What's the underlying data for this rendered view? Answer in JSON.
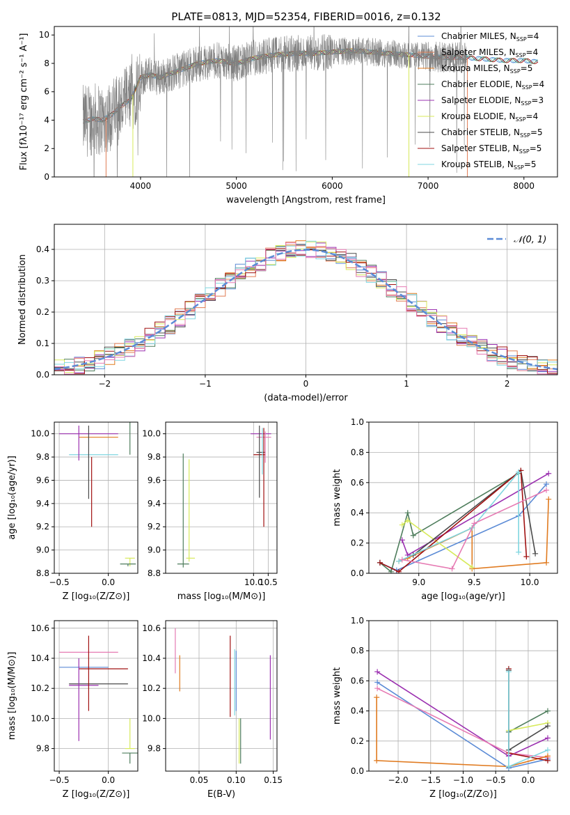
{
  "figure_title": "PLATE=0813, MJD=52354, FIBERID=0016, z=0.132",
  "colors": {
    "chabrier_miles": "#5b8bd6",
    "salpeter_miles": "#e07b52",
    "kroupa_miles": "#e07a1f",
    "chabrier_elodie": "#4e7d5c",
    "salpeter_elodie": "#9b30b0",
    "kroupa_elodie": "#d7ea5a",
    "chabrier_stelib": "#4a4a4a",
    "salpeter_stelib": "#a01010",
    "kroupa_stelib": "#7fd6e0",
    "normal_curve": "#5b8bd6",
    "data_spectrum": "#808080",
    "extra_pink": "#e67ab3"
  },
  "chart_data": [
    {
      "id": "spectrum",
      "type": "line",
      "xlabel": "wavelength [Angstrom, rest frame]",
      "ylabel": "Flux [fλ10⁻¹⁷ erg cm⁻² s⁻¹ A⁻¹]",
      "xlim": [
        3100,
        8350
      ],
      "ylim": [
        0,
        10.6
      ],
      "xticks": [
        "4000",
        "5000",
        "6000",
        "7000",
        "8000"
      ],
      "yticks": [
        "0",
        "2",
        "4",
        "6",
        "8",
        "10"
      ],
      "legend_position": "top-right",
      "legend": [
        {
          "label": "Chabrier MILES, N",
          "sub": "SSP",
          "suffix": "=4",
          "color_key": "chabrier_miles"
        },
        {
          "label": "Salpeter MILES, N",
          "sub": "SSP",
          "suffix": "=4",
          "color_key": "salpeter_miles"
        },
        {
          "label": "Kroupa MILES, N",
          "sub": "SSP",
          "suffix": "=5",
          "color_key": "kroupa_miles"
        },
        {
          "label": "Chabrier ELODIE, N",
          "sub": "SSP",
          "suffix": "=4",
          "color_key": "chabrier_elodie"
        },
        {
          "label": "Salpeter ELODIE, N",
          "sub": "SSP",
          "suffix": "=3",
          "color_key": "salpeter_elodie"
        },
        {
          "label": "Kroupa ELODIE, N",
          "sub": "SSP",
          "suffix": "=4",
          "color_key": "kroupa_elodie"
        },
        {
          "label": "Chabrier STELIB, N",
          "sub": "SSP",
          "suffix": "=5",
          "color_key": "chabrier_stelib"
        },
        {
          "label": "Salpeter STELIB, N",
          "sub": "SSP",
          "suffix": "=5",
          "color_key": "salpeter_stelib"
        },
        {
          "label": "Kroupa STELIB, N",
          "sub": "SSP",
          "suffix": "=5",
          "color_key": "kroupa_stelib"
        }
      ],
      "model_continuum": {
        "x": [
          3400,
          3500,
          3600,
          3700,
          3800,
          3900,
          4000,
          4100,
          4200,
          4400,
          4600,
          4800,
          5000,
          5200,
          5400,
          5600,
          5800,
          6000,
          6200,
          6400,
          6600,
          6800,
          7000,
          7200,
          7400,
          7600,
          7800,
          8000,
          8150
        ],
        "y": [
          3.9,
          4.1,
          4.0,
          4.4,
          5.0,
          5.5,
          7.0,
          7.2,
          7.0,
          7.5,
          8.0,
          8.2,
          8.0,
          8.4,
          8.6,
          8.7,
          8.7,
          8.8,
          8.9,
          8.8,
          8.7,
          8.6,
          8.5,
          8.4,
          8.4,
          8.3,
          8.2,
          8.2,
          8.1
        ]
      }
    },
    {
      "id": "residuals",
      "type": "line",
      "xlabel": "(data-model)/error",
      "ylabel": "Normed distribution",
      "xlim": [
        -2.5,
        2.5
      ],
      "ylim": [
        0,
        0.48
      ],
      "xticks": [
        "−2",
        "−1",
        "0",
        "1",
        "2"
      ],
      "yticks": [
        "0.0",
        "0.1",
        "0.2",
        "0.3",
        "0.4"
      ],
      "grid": true,
      "legend_position": "top-right",
      "legend": [
        {
          "label": "𝒩(0, 1)",
          "color_key": "normal_curve"
        }
      ],
      "bin_width": 0.1,
      "bin_start": -2.5
    },
    {
      "id": "age_vs_Z",
      "type": "scatter",
      "xlabel": "Z [log₁₀(Z/Z⊙)]",
      "ylabel": "age  [log₁₀(age/yr)]",
      "xlim": [
        -0.55,
        0.3
      ],
      "ylim": [
        8.8,
        10.1
      ],
      "xticks": [
        "−0.5",
        "0.0"
      ],
      "yticks": [
        "8.8",
        "9.0",
        "9.2",
        "9.4",
        "9.6",
        "9.8",
        "10.0"
      ],
      "grid": true,
      "points": [
        {
          "x": 0.22,
          "y": 9.82,
          "xerr": 0.0,
          "yerr": [
            0.0,
            0.95
          ],
          "color_key": "chabrier_elodie"
        },
        {
          "x": 0.22,
          "y": 8.93,
          "xerr": 0.05,
          "yerr": [
            0.07,
            0.0
          ],
          "color_key": "kroupa_elodie"
        },
        {
          "x": 0.2,
          "y": 8.88,
          "xerr": 0.08,
          "yerr": [
            0.02,
            0.0
          ],
          "color_key": "chabrier_elodie"
        },
        {
          "x": -0.15,
          "y": 9.82,
          "xerr": 0.25,
          "yerr": [
            0.0,
            0.0
          ],
          "color_key": "kroupa_stelib"
        },
        {
          "x": -0.2,
          "y": 10.0,
          "xerr": 0.3,
          "yerr": [
            0.0,
            0.0
          ],
          "color_key": "salpeter_elodie"
        },
        {
          "x": -0.1,
          "y": 9.97,
          "xerr": 0.2,
          "yerr": [
            0.0,
            0.0
          ],
          "color_key": "kroupa_miles"
        },
        {
          "x": -0.17,
          "y": 9.8,
          "xerr": 0.0,
          "yerr": [
            0.6,
            0.0
          ],
          "color_key": "salpeter_stelib"
        },
        {
          "x": -0.2,
          "y": 9.84,
          "xerr": 0.0,
          "yerr": [
            0.4,
            0.23
          ],
          "color_key": "chabrier_stelib"
        },
        {
          "x": -0.3,
          "y": 9.97,
          "xerr": 0.0,
          "yerr": [
            0.2,
            0.1
          ],
          "color_key": "salpeter_elodie"
        }
      ]
    },
    {
      "id": "age_vs_mass",
      "type": "scatter",
      "xlabel": "mass [log₁₀(M/M⊙)]",
      "ylabel": "",
      "xlim": [
        7.0,
        10.8
      ],
      "ylim": [
        8.8,
        10.1
      ],
      "xticks": [
        "10.0",
        "10.5"
      ],
      "yticks": [
        "8.8",
        "9.0",
        "9.2",
        "9.4",
        "9.6",
        "9.8",
        "10.0"
      ],
      "grid": true
    },
    {
      "id": "mass_weight_vs_age",
      "type": "line",
      "xlabel": "age  [log₁₀(age/yr)]",
      "ylabel": "mass weight",
      "xlim": [
        8.55,
        10.25
      ],
      "ylim": [
        0,
        1.0
      ],
      "xticks": [
        "9.0",
        "9.5",
        "10.0"
      ],
      "yticks": [
        "0.0",
        "0.2",
        "0.4",
        "0.6",
        "0.8",
        "1.0"
      ],
      "grid": true,
      "series": [
        {
          "color_key": "chabrier_miles",
          "x": [
            8.65,
            8.8,
            9.9,
            10.15
          ],
          "y": [
            0.07,
            0.02,
            0.38,
            0.59
          ]
        },
        {
          "color_key": "kroupa_miles",
          "x": [
            8.82,
            8.9,
            9.48,
            9.48,
            10.15,
            10.17
          ],
          "y": [
            0.08,
            0.1,
            0.3,
            0.03,
            0.07,
            0.49
          ]
        },
        {
          "color_key": "chabrier_elodie",
          "x": [
            8.65,
            8.75,
            8.9,
            8.95,
            9.9
          ],
          "y": [
            0.07,
            0.01,
            0.4,
            0.25,
            0.66
          ]
        },
        {
          "color_key": "salpeter_elodie",
          "x": [
            8.85,
            8.9,
            10.17
          ],
          "y": [
            0.22,
            0.12,
            0.66
          ]
        },
        {
          "color_key": "kroupa_elodie",
          "x": [
            8.85,
            8.9,
            9.48
          ],
          "y": [
            0.32,
            0.35,
            0.04
          ]
        },
        {
          "color_key": "chabrier_stelib",
          "x": [
            8.95,
            9.92,
            10.05
          ],
          "y": [
            0.12,
            0.68,
            0.13
          ]
        },
        {
          "color_key": "salpeter_stelib",
          "x": [
            8.65,
            8.82,
            9.92,
            9.97
          ],
          "y": [
            0.07,
            0.01,
            0.68,
            0.11
          ]
        },
        {
          "color_key": "kroupa_stelib",
          "x": [
            8.82,
            9.48,
            9.9,
            9.9
          ],
          "y": [
            0.08,
            0.3,
            0.67,
            0.14
          ]
        },
        {
          "color_key": "extra_pink",
          "x": [
            8.85,
            9.3,
            9.5,
            10.15
          ],
          "y": [
            0.09,
            0.03,
            0.33,
            0.55
          ]
        }
      ]
    },
    {
      "id": "mass_vs_Z",
      "type": "scatter",
      "xlabel": "Z [log₁₀(Z/Z⊙)]",
      "ylabel": "mass [log₁₀(M/M⊙)]",
      "xlim": [
        -0.55,
        0.3
      ],
      "ylim": [
        9.65,
        10.65
      ],
      "xticks": [
        "−0.5",
        "0.0"
      ],
      "yticks": [
        "9.8",
        "10.0",
        "10.2",
        "10.4",
        "10.6"
      ],
      "grid": true,
      "points": [
        {
          "x": -0.25,
          "y": 10.34,
          "xerr": 0.25,
          "yerr": [
            0.0,
            0.0
          ],
          "color_key": "chabrier_miles"
        },
        {
          "x": -0.05,
          "y": 10.33,
          "xerr": 0.25,
          "yerr": [
            0.0,
            0.0
          ],
          "color_key": "salpeter_stelib"
        },
        {
          "x": -0.1,
          "y": 10.23,
          "xerr": 0.3,
          "yerr": [
            0.0,
            0.0
          ],
          "color_key": "chabrier_stelib"
        },
        {
          "x": -0.25,
          "y": 10.22,
          "xerr": 0.15,
          "yerr": [
            0.0,
            0.0
          ],
          "color_key": "salpeter_elodie"
        },
        {
          "x": -0.2,
          "y": 10.44,
          "xerr": 0.3,
          "yerr": [
            0.0,
            0.0
          ],
          "color_key": "extra_pink"
        },
        {
          "x": 0.22,
          "y": 9.8,
          "xerr": 0.05,
          "yerr": [
            0.0,
            0.2
          ],
          "color_key": "kroupa_elodie"
        },
        {
          "x": 0.22,
          "y": 9.77,
          "xerr": 0.08,
          "yerr": [
            0.07,
            0.0
          ],
          "color_key": "chabrier_elodie"
        },
        {
          "x": -0.3,
          "y": 10.15,
          "xerr": 0.0,
          "yerr": [
            0.3,
            0.25
          ],
          "color_key": "salpeter_elodie"
        },
        {
          "x": -0.2,
          "y": 10.3,
          "xerr": 0.0,
          "yerr": [
            0.25,
            0.25
          ],
          "color_key": "salpeter_stelib"
        }
      ]
    },
    {
      "id": "mass_vs_EBV",
      "type": "scatter",
      "xlabel": "E(B-V)",
      "ylabel": "",
      "xlim": [
        0.005,
        0.155
      ],
      "ylim": [
        9.65,
        10.65
      ],
      "xticks": [
        "0.05",
        "0.10",
        "0.15"
      ],
      "yticks": [
        "9.8",
        "10.0",
        "10.2",
        "10.4",
        "10.6"
      ],
      "grid": true,
      "points": [
        {
          "x": 0.018,
          "y": 10.45,
          "yerr": [
            0.15,
            0.15
          ],
          "color_key": "extra_pink"
        },
        {
          "x": 0.024,
          "y": 10.3,
          "yerr": [
            0.12,
            0.12
          ],
          "color_key": "kroupa_miles"
        },
        {
          "x": 0.092,
          "y": 10.28,
          "yerr": [
            0.27,
            0.27
          ],
          "color_key": "salpeter_stelib"
        },
        {
          "x": 0.098,
          "y": 10.24,
          "yerr": [
            0.22,
            0.22
          ],
          "color_key": "kroupa_stelib"
        },
        {
          "x": 0.1,
          "y": 10.25,
          "yerr": [
            0.2,
            0.2
          ],
          "color_key": "chabrier_miles"
        },
        {
          "x": 0.104,
          "y": 9.85,
          "yerr": [
            0.15,
            0.15
          ],
          "color_key": "kroupa_elodie"
        },
        {
          "x": 0.106,
          "y": 9.85,
          "yerr": [
            0.15,
            0.15
          ],
          "color_key": "chabrier_elodie"
        },
        {
          "x": 0.146,
          "y": 10.14,
          "yerr": [
            0.28,
            0.28
          ],
          "color_key": "salpeter_elodie"
        }
      ]
    },
    {
      "id": "mass_weight_vs_Z",
      "type": "line",
      "xlabel": "Z [log₁₀(Z/Z⊙)]",
      "ylabel": "mass weight",
      "xlim": [
        -2.45,
        0.45
      ],
      "ylim": [
        0,
        1.0
      ],
      "xticks": [
        "−2.0",
        "−1.5",
        "−1.0",
        "−0.5",
        "0.0"
      ],
      "yticks": [
        "0.0",
        "0.2",
        "0.4",
        "0.6",
        "0.8",
        "1.0"
      ],
      "grid": true,
      "series": [
        {
          "color_key": "salpeter_elodie",
          "x": [
            -2.32,
            -0.3,
            0.3
          ],
          "y": [
            0.66,
            0.1,
            0.22
          ]
        },
        {
          "color_key": "chabrier_miles",
          "x": [
            -2.32,
            -0.3,
            0.3
          ],
          "y": [
            0.59,
            0.02,
            0.08
          ]
        },
        {
          "color_key": "extra_pink",
          "x": [
            -2.32,
            -0.3,
            0.3
          ],
          "y": [
            0.55,
            0.12,
            0.09
          ]
        },
        {
          "color_key": "kroupa_miles",
          "x": [
            -2.33,
            -2.33,
            -0.3,
            0.3
          ],
          "y": [
            0.49,
            0.07,
            0.03,
            0.1
          ]
        },
        {
          "color_key": "chabrier_elodie",
          "x": [
            -0.3,
            0.3
          ],
          "y": [
            0.26,
            0.4
          ]
        },
        {
          "color_key": "kroupa_elodie",
          "x": [
            -0.3,
            0.3
          ],
          "y": [
            0.27,
            0.32
          ]
        },
        {
          "color_key": "salpeter_stelib",
          "x": [
            -0.3,
            -0.3,
            0.3
          ],
          "y": [
            0.68,
            0.12,
            0.07
          ]
        },
        {
          "color_key": "chabrier_stelib",
          "x": [
            -0.3,
            -0.3,
            0.3
          ],
          "y": [
            0.67,
            0.14,
            0.3
          ]
        },
        {
          "color_key": "kroupa_stelib",
          "x": [
            -0.3,
            -0.3,
            0.3
          ],
          "y": [
            0.66,
            0.03,
            0.14
          ]
        }
      ]
    }
  ]
}
